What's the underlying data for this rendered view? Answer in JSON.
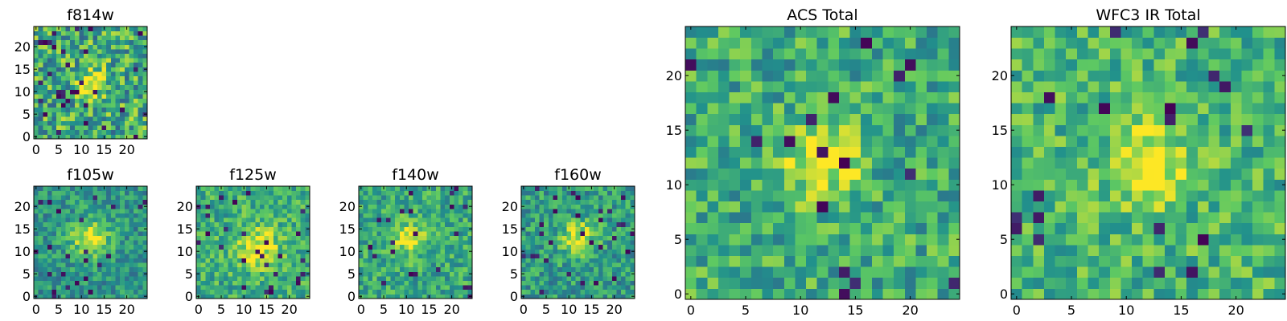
{
  "figure_title": "",
  "colormap": [
    "#440154",
    "#3b528b",
    "#21918c",
    "#5ec962",
    "#fde725"
  ],
  "chart_data": [
    {
      "type": "heatmap",
      "id": "f814w",
      "title": "f814w",
      "nx": 25,
      "ny": 25,
      "xticks": [
        "0",
        "5",
        "10",
        "15",
        "20"
      ],
      "yticks": [
        "0",
        "5",
        "10",
        "15",
        "20"
      ],
      "xlim": [
        -0.5,
        24.5
      ],
      "ylim": [
        -0.5,
        24.5
      ],
      "source": [
        12,
        12
      ],
      "seed": 11,
      "peak": 0.4,
      "sigma": 2.2,
      "base": 0.62,
      "noise": 0.3,
      "outlier_rate": 0.05
    },
    {
      "type": "heatmap",
      "id": "f105w",
      "title": "f105w",
      "nx": 25,
      "ny": 25,
      "xticks": [
        "0",
        "5",
        "10",
        "15",
        "20"
      ],
      "yticks": [
        "0",
        "5",
        "10",
        "15",
        "20"
      ],
      "xlim": [
        -0.5,
        24.5
      ],
      "ylim": [
        -0.5,
        24.5
      ],
      "source": [
        12,
        13
      ],
      "seed": 23,
      "peak": 0.45,
      "sigma": 3.0,
      "base": 0.52,
      "noise": 0.18,
      "outlier_rate": 0.03
    },
    {
      "type": "heatmap",
      "id": "f125w",
      "title": "f125w",
      "nx": 25,
      "ny": 25,
      "xticks": [
        "0",
        "5",
        "10",
        "15",
        "20"
      ],
      "yticks": [
        "0",
        "5",
        "10",
        "15",
        "20"
      ],
      "xlim": [
        -0.5,
        24.5
      ],
      "ylim": [
        -0.5,
        24.5
      ],
      "source": [
        13,
        11
      ],
      "seed": 37,
      "peak": 0.35,
      "sigma": 3.5,
      "base": 0.62,
      "noise": 0.2,
      "outlier_rate": 0.03
    },
    {
      "type": "heatmap",
      "id": "f140w",
      "title": "f140w",
      "nx": 25,
      "ny": 25,
      "xticks": [
        "0",
        "5",
        "10",
        "15",
        "20"
      ],
      "yticks": [
        "0",
        "5",
        "10",
        "15",
        "20"
      ],
      "xlim": [
        -0.5,
        24.5
      ],
      "ylim": [
        -0.5,
        24.5
      ],
      "source": [
        11,
        13
      ],
      "seed": 41,
      "peak": 0.4,
      "sigma": 2.5,
      "base": 0.6,
      "noise": 0.2,
      "outlier_rate": 0.03
    },
    {
      "type": "heatmap",
      "id": "f160w",
      "title": "f160w",
      "nx": 25,
      "ny": 25,
      "xticks": [
        "0",
        "5",
        "10",
        "15",
        "20"
      ],
      "yticks": [
        "0",
        "5",
        "10",
        "15",
        "20"
      ],
      "xlim": [
        -0.5,
        24.5
      ],
      "ylim": [
        -0.5,
        24.5
      ],
      "source": [
        12,
        13
      ],
      "seed": 53,
      "peak": 0.4,
      "sigma": 2.8,
      "base": 0.55,
      "noise": 0.2,
      "outlier_rate": 0.04
    },
    {
      "type": "heatmap",
      "id": "acs_total",
      "title": "ACS Total",
      "nx": 25,
      "ny": 25,
      "xticks": [
        "0",
        "5",
        "10",
        "15",
        "20"
      ],
      "yticks": [
        "0",
        "5",
        "10",
        "15",
        "20"
      ],
      "xlim": [
        -0.5,
        24.5
      ],
      "ylim": [
        -0.5,
        24.5
      ],
      "source": [
        12,
        12
      ],
      "seed": 67,
      "peak": 0.4,
      "sigma": 2.4,
      "base": 0.62,
      "noise": 0.22,
      "outlier_rate": 0.03
    },
    {
      "type": "heatmap",
      "id": "wfc3_ir_total",
      "title": "WFC3 IR Total",
      "nx": 25,
      "ny": 25,
      "xticks": [
        "0",
        "5",
        "10",
        "15",
        "20"
      ],
      "yticks": [
        "0",
        "5",
        "10",
        "15",
        "20"
      ],
      "xlim": [
        -0.5,
        24.5
      ],
      "ylim": [
        -0.5,
        24.5
      ],
      "source": [
        12,
        12
      ],
      "seed": 79,
      "peak": 0.35,
      "sigma": 2.6,
      "base": 0.66,
      "noise": 0.2,
      "outlier_rate": 0.03
    }
  ]
}
